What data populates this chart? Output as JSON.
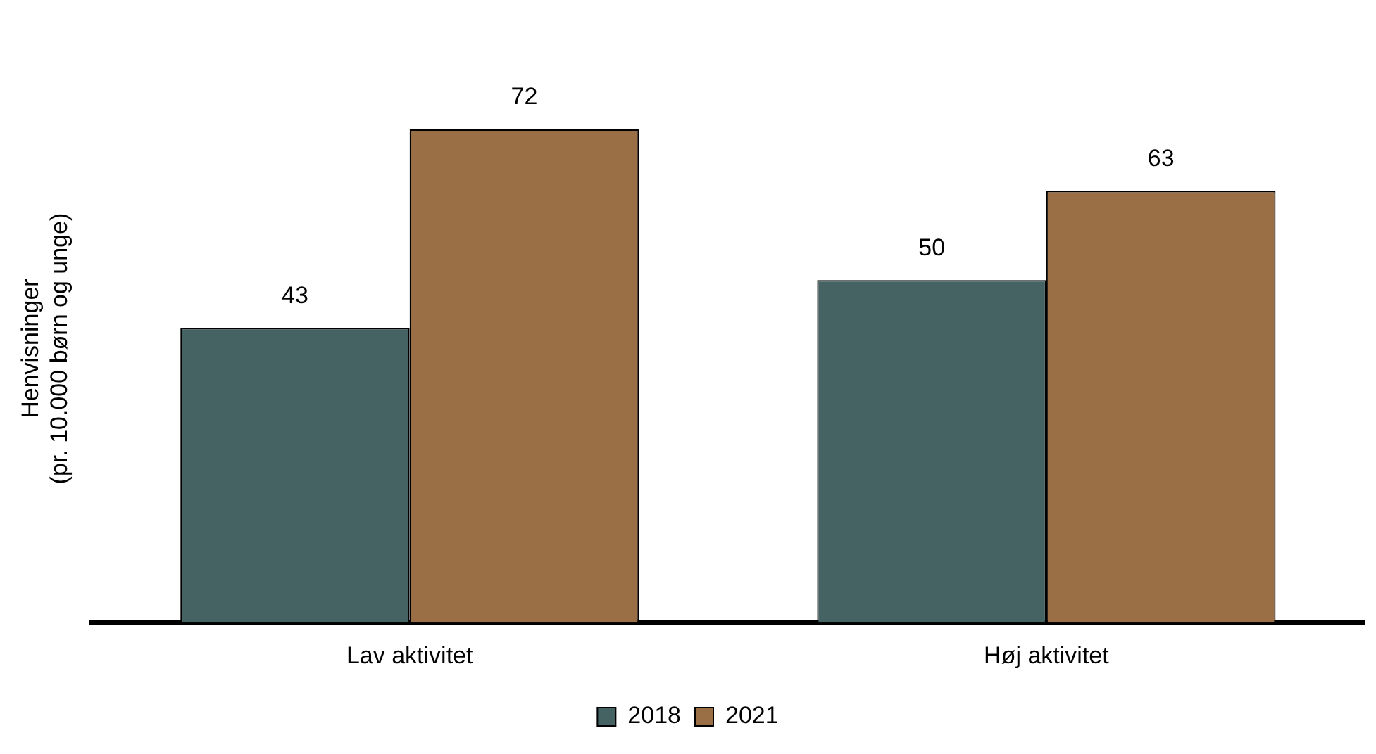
{
  "chart_data": {
    "type": "bar",
    "ylabel": "Henvisninger\n(pr. 10.000 børn og unge)",
    "categories": [
      "Lav aktivitet",
      "Høj aktivitet"
    ],
    "series": [
      {
        "name": "2018",
        "color": "#456363",
        "values": [
          43,
          50
        ]
      },
      {
        "name": "2021",
        "color": "#9b6f45",
        "values": [
          72,
          63
        ]
      }
    ],
    "data_labels": true,
    "legend": "bottom"
  }
}
